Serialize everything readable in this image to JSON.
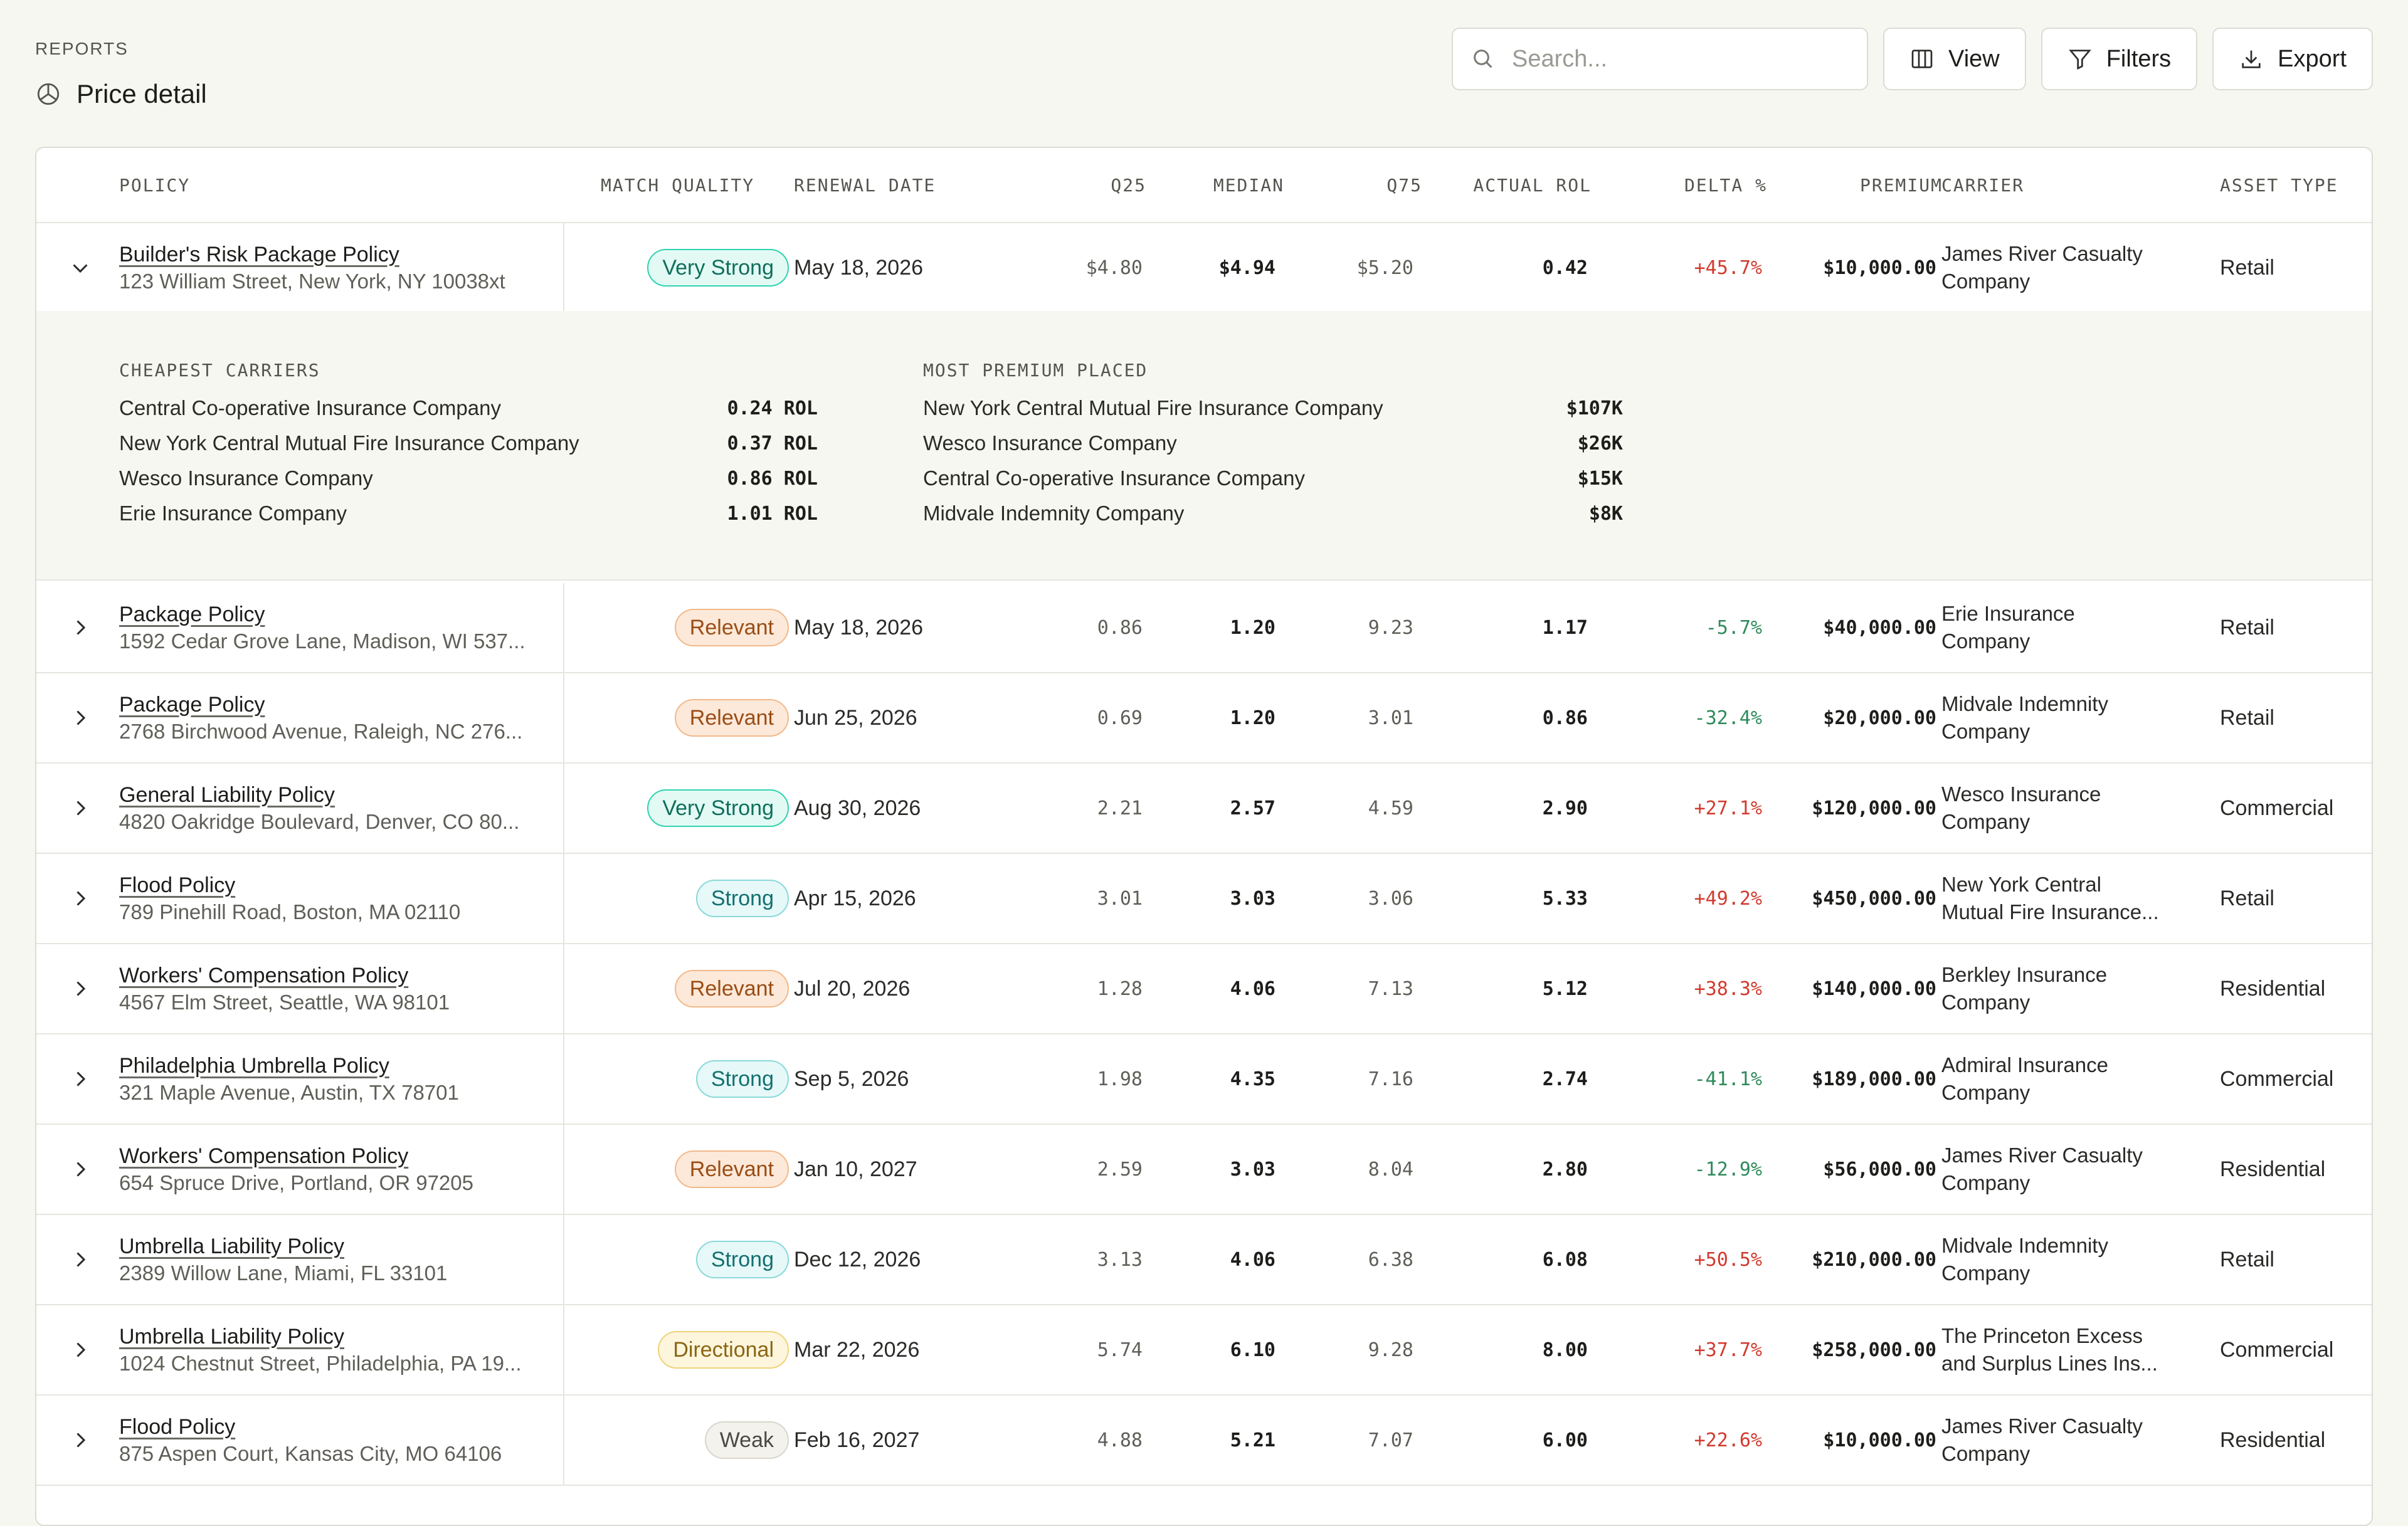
{
  "header": {
    "eyebrow": "REPORTS",
    "title": "Price detail"
  },
  "toolbar": {
    "search_placeholder": "Search...",
    "view_label": "View",
    "filters_label": "Filters",
    "export_label": "Export"
  },
  "table": {
    "columns": {
      "policy": "POLICY",
      "match_quality": "MATCH QUALITY",
      "renewal_date": "RENEWAL DATE",
      "q25": "Q25",
      "median": "MEDIAN",
      "q75": "Q75",
      "actual_rol": "ACTUAL ROL",
      "delta": "DELTA %",
      "premium": "PREMIUM",
      "carrier": "CARRIER",
      "asset_type": "ASSET TYPE"
    },
    "expanded": {
      "cheapest_title": "CHEAPEST CARRIERS",
      "cheapest": [
        {
          "name": "Central Co-operative Insurance Company",
          "value": "0.24 ROL"
        },
        {
          "name": "New York Central Mutual Fire Insurance Company",
          "value": "0.37 ROL"
        },
        {
          "name": "Wesco Insurance Company",
          "value": "0.86 ROL"
        },
        {
          "name": "Erie Insurance Company",
          "value": "1.01 ROL"
        }
      ],
      "premium_title": "MOST PREMIUM PLACED",
      "premium": [
        {
          "name": "New York Central Mutual Fire Insurance Company",
          "value": "$107K"
        },
        {
          "name": "Wesco Insurance Company",
          "value": "$26K"
        },
        {
          "name": "Central Co-operative Insurance Company",
          "value": "$15K"
        },
        {
          "name": "Midvale Indemnity Company",
          "value": "$8K"
        }
      ]
    },
    "rows": [
      {
        "name": "Builder's Risk Package Policy",
        "address": "123 William Street, New York, NY 10038xt",
        "match": "Very Strong",
        "renewal": "May 18, 2026",
        "q25": "$4.80",
        "median": "$4.94",
        "q75": "$5.20",
        "actual": "0.42",
        "delta": "+45.7%",
        "premium": "$10,000.00",
        "carrier1": "James River Casualty",
        "carrier2": "Company",
        "asset": "Retail",
        "expanded": true
      },
      {
        "name": "Package Policy",
        "address": "1592 Cedar Grove Lane, Madison, WI 537...",
        "match": "Relevant",
        "renewal": "May 18, 2026",
        "q25": "0.86",
        "median": "1.20",
        "q75": "9.23",
        "actual": "1.17",
        "delta": "-5.7%",
        "premium": "$40,000.00",
        "carrier1": "Erie Insurance",
        "carrier2": "Company",
        "asset": "Retail"
      },
      {
        "name": "Package Policy",
        "address": "2768 Birchwood Avenue, Raleigh, NC 276...",
        "match": "Relevant",
        "renewal": "Jun 25, 2026",
        "q25": "0.69",
        "median": "1.20",
        "q75": "3.01",
        "actual": "0.86",
        "delta": "-32.4%",
        "premium": "$20,000.00",
        "carrier1": "Midvale Indemnity",
        "carrier2": "Company",
        "asset": "Retail"
      },
      {
        "name": "General Liability Policy",
        "address": "4820 Oakridge Boulevard, Denver, CO 80...",
        "match": "Very Strong",
        "renewal": "Aug 30, 2026",
        "q25": "2.21",
        "median": "2.57",
        "q75": "4.59",
        "actual": "2.90",
        "delta": "+27.1%",
        "premium": "$120,000.00",
        "carrier1": "Wesco Insurance",
        "carrier2": "Company",
        "asset": "Commercial"
      },
      {
        "name": "Flood Policy",
        "address": "789 Pinehill Road, Boston, MA 02110",
        "match": "Strong",
        "renewal": "Apr 15, 2026",
        "q25": "3.01",
        "median": "3.03",
        "q75": "3.06",
        "actual": "5.33",
        "delta": "+49.2%",
        "premium": "$450,000.00",
        "carrier1": "New York Central",
        "carrier2": "Mutual Fire Insurance...",
        "asset": "Retail"
      },
      {
        "name": "Workers' Compensation Policy",
        "address": "4567 Elm Street, Seattle, WA 98101",
        "match": "Relevant",
        "renewal": "Jul 20, 2026",
        "q25": "1.28",
        "median": "4.06",
        "q75": "7.13",
        "actual": "5.12",
        "delta": "+38.3%",
        "premium": "$140,000.00",
        "carrier1": "Berkley Insurance",
        "carrier2": "Company",
        "asset": "Residential"
      },
      {
        "name": "Philadelphia Umbrella Policy",
        "address": "321 Maple Avenue, Austin, TX 78701",
        "match": "Strong",
        "renewal": "Sep 5, 2026",
        "q25": "1.98",
        "median": "4.35",
        "q75": "7.16",
        "actual": "2.74",
        "delta": "-41.1%",
        "premium": "$189,000.00",
        "carrier1": "Admiral Insurance",
        "carrier2": "Company",
        "asset": "Commercial"
      },
      {
        "name": "Workers' Compensation Policy",
        "address": "654 Spruce Drive, Portland, OR 97205",
        "match": "Relevant",
        "renewal": "Jan 10, 2027",
        "q25": "2.59",
        "median": "3.03",
        "q75": "8.04",
        "actual": "2.80",
        "delta": "-12.9%",
        "premium": "$56,000.00",
        "carrier1": "James River Casualty",
        "carrier2": "Company",
        "asset": "Residential"
      },
      {
        "name": "Umbrella Liability Policy",
        "address": "2389 Willow Lane, Miami, FL 33101",
        "match": "Strong",
        "renewal": "Dec 12, 2026",
        "q25": "3.13",
        "median": "4.06",
        "q75": "6.38",
        "actual": "6.08",
        "delta": "+50.5%",
        "premium": "$210,000.00",
        "carrier1": "Midvale Indemnity",
        "carrier2": "Company",
        "asset": "Retail"
      },
      {
        "name": "Umbrella Liability Policy",
        "address": "1024 Chestnut Street, Philadelphia, PA 19...",
        "match": "Directional",
        "renewal": "Mar 22, 2026",
        "q25": "5.74",
        "median": "6.10",
        "q75": "9.28",
        "actual": "8.00",
        "delta": "+37.7%",
        "premium": "$258,000.00",
        "carrier1": "The Princeton Excess",
        "carrier2": "and Surplus Lines Ins...",
        "asset": "Commercial"
      },
      {
        "name": "Flood Policy",
        "address": "875 Aspen Court, Kansas City, MO 64106",
        "match": "Weak",
        "renewal": "Feb 16, 2027",
        "q25": "4.88",
        "median": "5.21",
        "q75": "7.07",
        "actual": "6.00",
        "delta": "+22.6%",
        "premium": "$10,000.00",
        "carrier1": "James River Casualty",
        "carrier2": "Company",
        "asset": "Residential"
      }
    ]
  },
  "badge_colors": {
    "Very Strong": {
      "bg": "#e3faf4",
      "border": "#2fd3b0",
      "text": "#0f6f5c"
    },
    "Strong": {
      "bg": "#e6f8f8",
      "border": "#8ad9d9",
      "text": "#136f6f"
    },
    "Relevant": {
      "bg": "#fde9d9",
      "border": "#f2b98a",
      "text": "#9a4d16"
    },
    "Directional": {
      "bg": "#fdf6dc",
      "border": "#efd27a",
      "text": "#8a6514"
    },
    "Weak": {
      "bg": "#f3f2ec",
      "border": "#d8d6cc",
      "text": "#4a4a44"
    }
  },
  "icons": {
    "title": "pie-chart-icon",
    "search": "search-icon",
    "view": "columns-icon",
    "filters": "filter-icon",
    "export": "download-icon",
    "expand": "chevron-right-icon",
    "collapse": "chevron-down-icon"
  }
}
